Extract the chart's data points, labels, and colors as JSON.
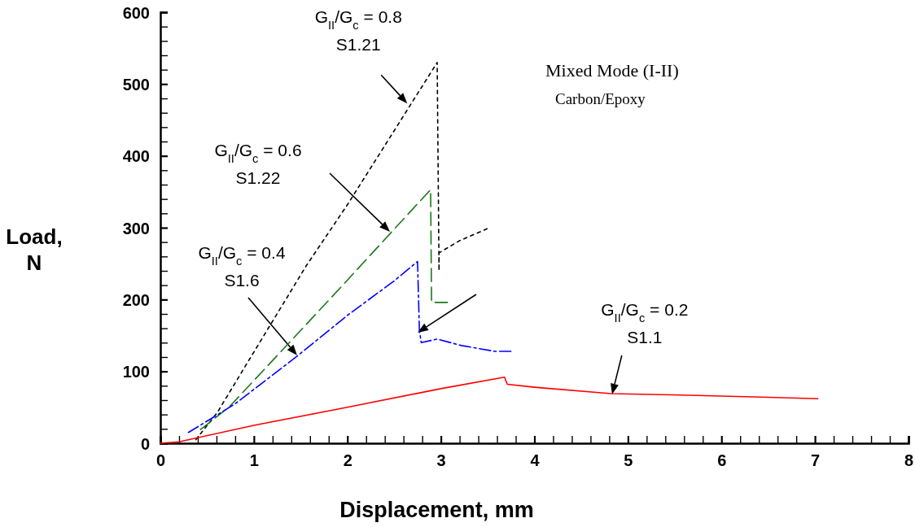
{
  "chart_data": {
    "type": "line",
    "title": "Mixed Mode (I-II)",
    "subtitle": "Carbon/Epoxy",
    "xlabel": "Displacement, mm",
    "ylabel": "Load, N",
    "xlim": [
      0,
      8
    ],
    "ylim": [
      0,
      600
    ],
    "xticks": [
      0,
      {
        "value": 0.2,
        "label": null
      },
      {
        "value": 0.4,
        "label": null
      },
      {
        "value": 0.6,
        "label": null
      },
      {
        "value": 0.8,
        "label": null
      },
      1,
      {
        "value": 1.2,
        "label": null
      },
      {
        "value": 1.4,
        "label": null
      },
      {
        "value": 1.6,
        "label": null
      },
      {
        "value": 1.8,
        "label": null
      },
      2,
      {
        "value": 2.2,
        "label": null
      },
      {
        "value": 2.4,
        "label": null
      },
      {
        "value": 2.6,
        "label": null
      },
      {
        "value": 2.8,
        "label": null
      },
      3,
      {
        "value": 3.2,
        "label": null
      },
      {
        "value": 3.4,
        "label": null
      },
      {
        "value": 3.6,
        "label": null
      },
      {
        "value": 3.8,
        "label": null
      },
      4,
      {
        "value": 4.2,
        "label": null
      },
      {
        "value": 4.4,
        "label": null
      },
      {
        "value": 4.6,
        "label": null
      },
      {
        "value": 4.8,
        "label": null
      },
      5,
      {
        "value": 5.2,
        "label": null
      },
      {
        "value": 5.4,
        "label": null
      },
      {
        "value": 5.6,
        "label": null
      },
      {
        "value": 5.8,
        "label": null
      },
      6,
      {
        "value": 6.2,
        "label": null
      },
      {
        "value": 6.4,
        "label": null
      },
      {
        "value": 6.6,
        "label": null
      },
      {
        "value": 6.8,
        "label": null
      },
      7,
      {
        "value": 7.2,
        "label": null
      },
      {
        "value": 7.4,
        "label": null
      },
      {
        "value": 7.6,
        "label": null
      },
      {
        "value": 7.8,
        "label": null
      },
      8
    ],
    "yticks": [
      0,
      {
        "value": 20,
        "label": null
      },
      {
        "value": 40,
        "label": null
      },
      {
        "value": 60,
        "label": null
      },
      {
        "value": 80,
        "label": null
      },
      100,
      {
        "value": 120,
        "label": null
      },
      {
        "value": 140,
        "label": null
      },
      {
        "value": 160,
        "label": null
      },
      {
        "value": 180,
        "label": null
      },
      200,
      {
        "value": 220,
        "label": null
      },
      {
        "value": 240,
        "label": null
      },
      {
        "value": 260,
        "label": null
      },
      {
        "value": 280,
        "label": null
      },
      300,
      {
        "value": 320,
        "label": null
      },
      {
        "value": 340,
        "label": null
      },
      {
        "value": 360,
        "label": null
      },
      {
        "value": 380,
        "label": null
      },
      400,
      {
        "value": 420,
        "label": null
      },
      {
        "value": 440,
        "label": null
      },
      {
        "value": 460,
        "label": null
      },
      {
        "value": 480,
        "label": null
      },
      500,
      {
        "value": 520,
        "label": null
      },
      {
        "value": 540,
        "label": null
      },
      {
        "value": 560,
        "label": null
      },
      {
        "value": 580,
        "label": null
      },
      600
    ],
    "grid": false,
    "legend": false,
    "series": [
      {
        "color": "#000000",
        "line_style": "dashed",
        "x": [
          0.38,
          0.61,
          1.0,
          1.56,
          2.0,
          2.5,
          2.96,
          2.98,
          2.98,
          3.2,
          3.52
        ],
        "values": [
          5,
          43,
          127,
          247,
          332,
          435,
          530,
          240,
          265,
          282,
          300
        ]
      },
      {
        "color": "#1a7a1a",
        "line_style": "dashed",
        "x": [
          0.43,
          0.74,
          1.5,
          2.0,
          2.5,
          2.89,
          2.9,
          3.07
        ],
        "values": [
          19,
          51,
          157,
          227,
          298,
          353,
          196,
          196
        ]
      },
      {
        "color": "#0000ff",
        "line_style": "dotted",
        "x": [
          0.3,
          0.59,
          0.8,
          1.46,
          2.0,
          2.5,
          2.75,
          2.77,
          2.79,
          2.96,
          3.22,
          3.57,
          3.77
        ],
        "values": [
          15,
          38,
          55,
          121,
          178,
          226,
          253,
          157,
          140,
          145,
          136,
          128,
          128
        ]
      },
      {
        "color": "#ff0000",
        "line_style": "solid",
        "x": [
          0,
          0.2,
          1,
          2,
          3,
          3.68,
          3.71,
          4.0,
          4.82,
          5.57,
          6.5,
          7.03
        ],
        "values": [
          0,
          2,
          25,
          50,
          76,
          92,
          82,
          78,
          69,
          67,
          64,
          62
        ]
      }
    ],
    "annotations": [
      {
        "text": "G$_{II}$/G$_{c}$ = 0.8\nS1.21",
        "x": 2.64,
        "y": 473
      },
      "G$_{II}$/G$_{c}$ = 0.6\nS1.22",
      "G$_{II}$/G$_{c}$ = 0.4\nS1.6",
      {
        "text": "G$_{II}$/G$_{c}$ = 0.2\nS1.1",
        "x": 4.83,
        "y": 68
      }
    ]
  }
}
